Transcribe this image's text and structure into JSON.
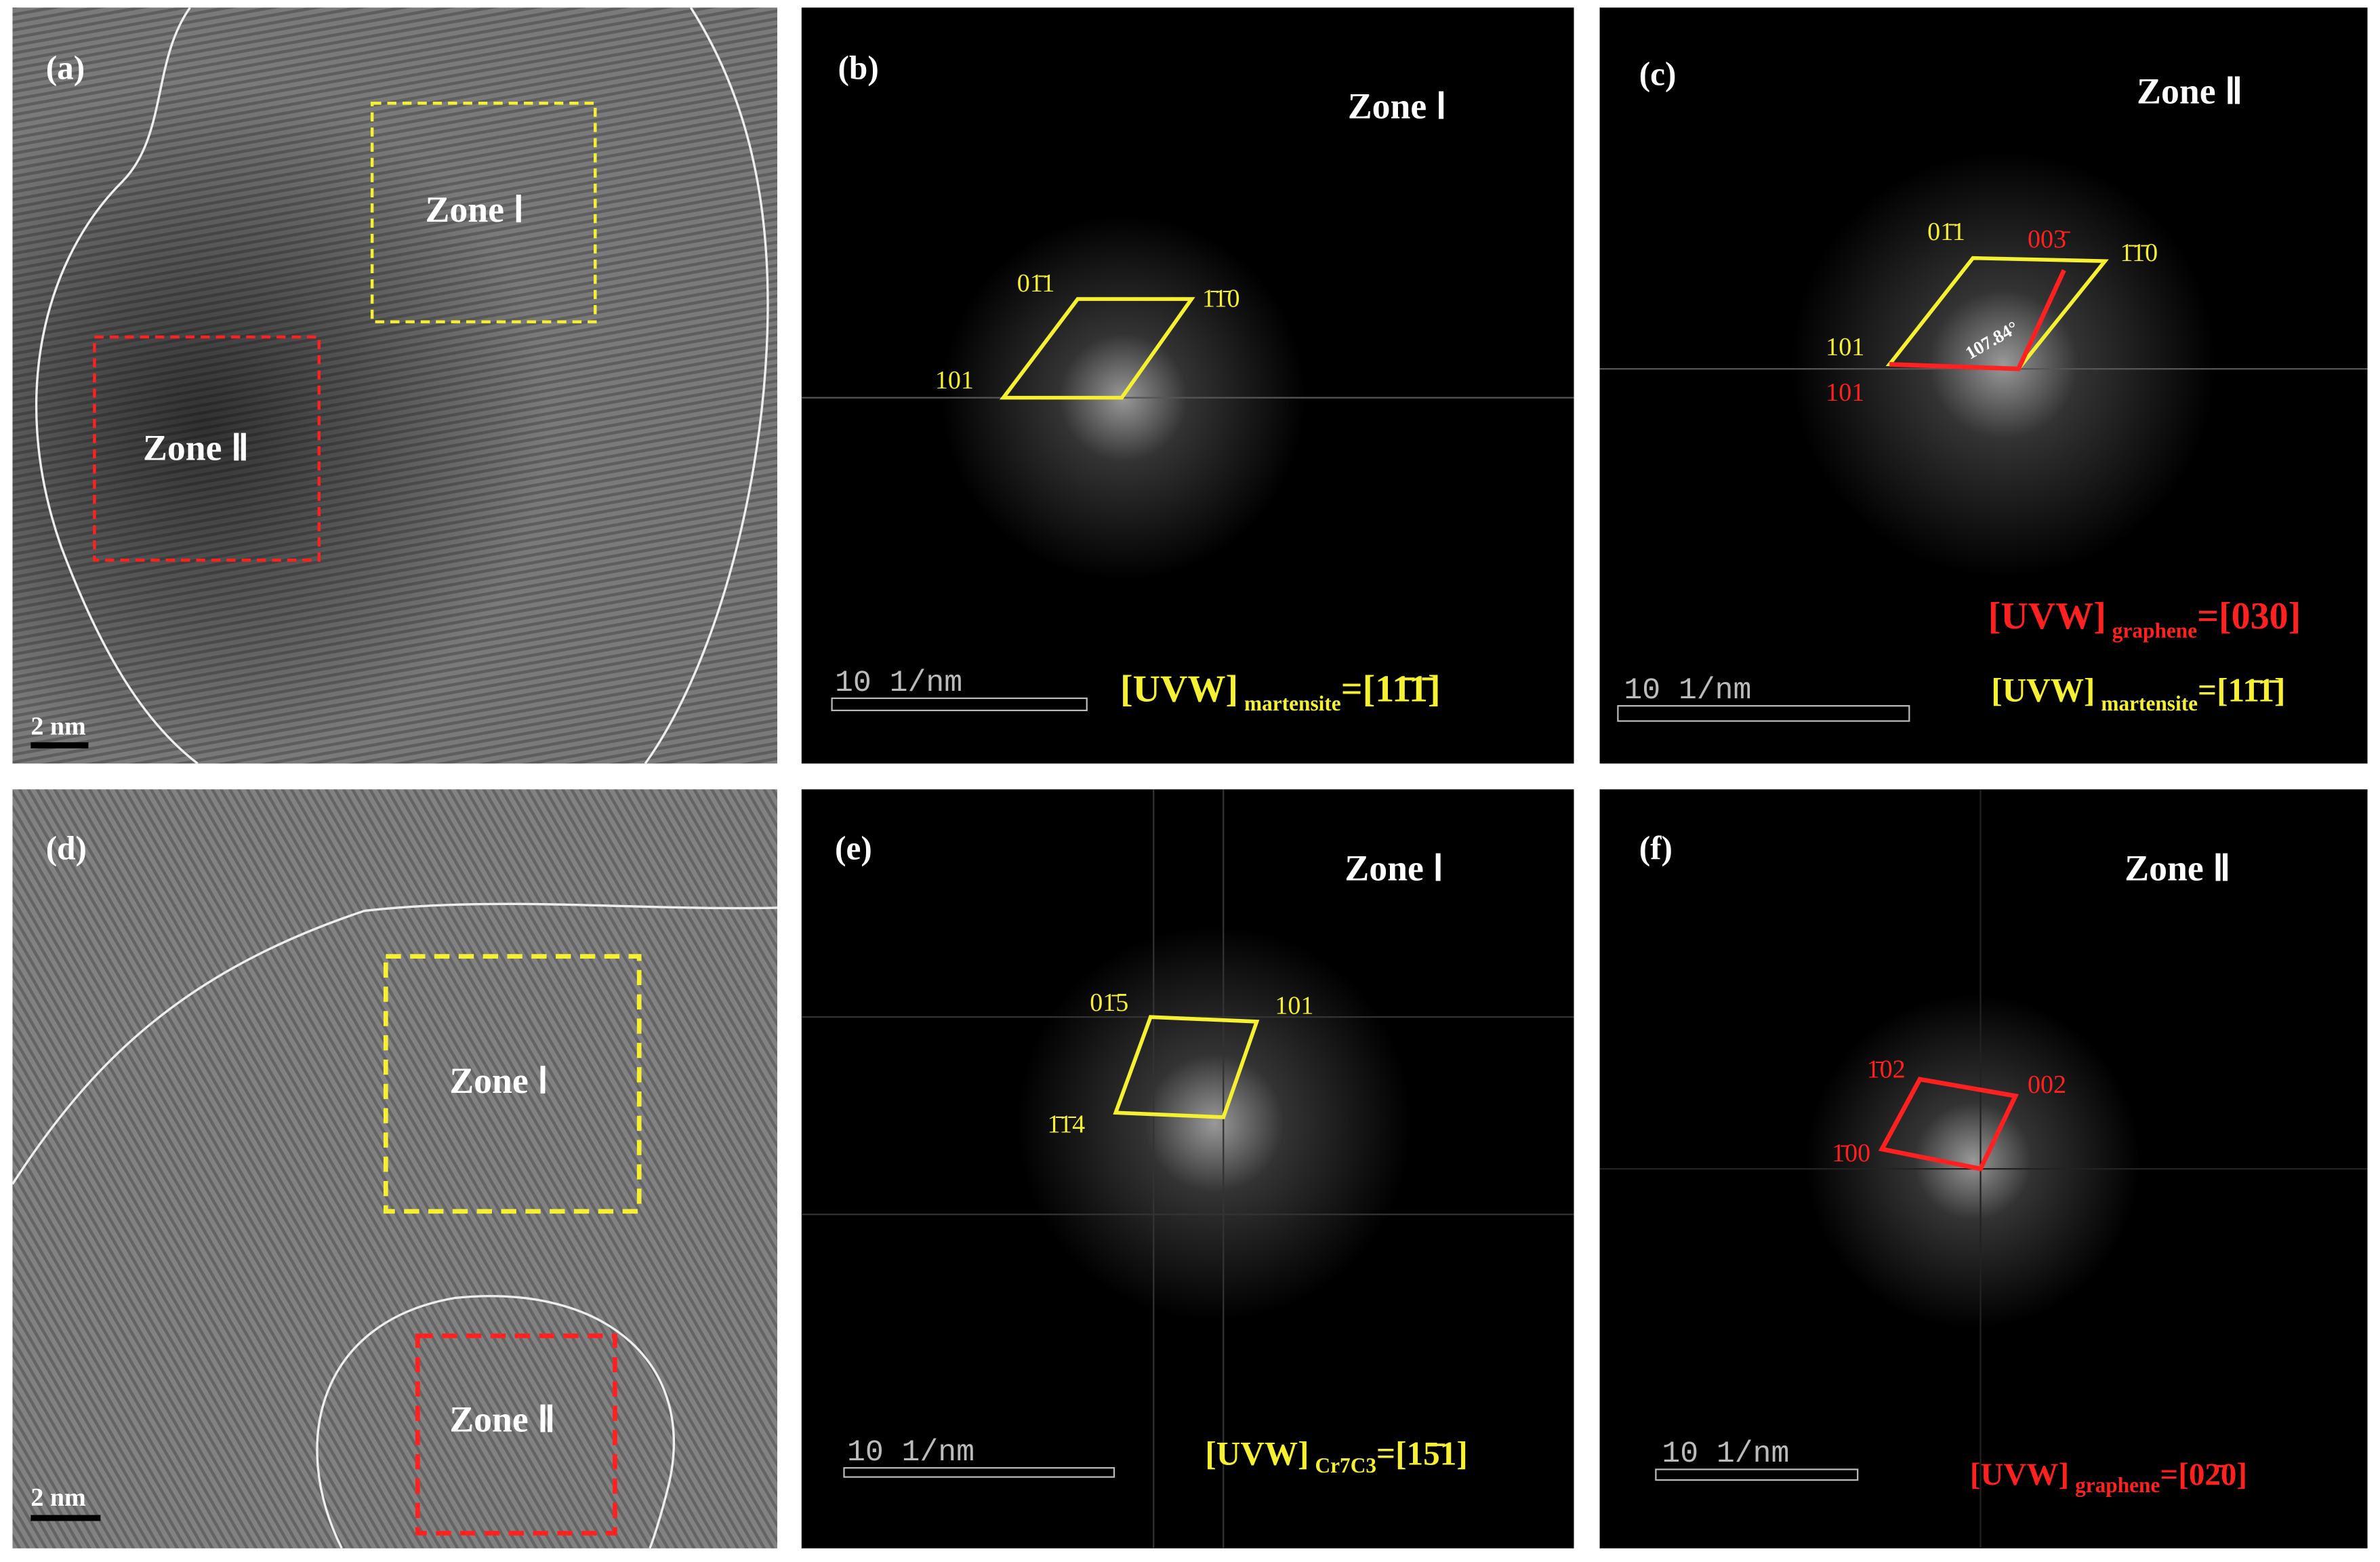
{
  "panels": [
    {
      "label": "(a)",
      "zones": [
        "Zone Ⅰ",
        "Zone Ⅱ"
      ],
      "scale_bar": "2 nm"
    },
    {
      "label": "(b)",
      "zone": "Zone Ⅰ",
      "indices": [
        "01̄1",
        "1̄1̄0",
        "101"
      ],
      "scale_bar": "10 1/nm",
      "uvw": {
        "prefix": "[UVW]",
        "subscript": "martensite",
        "suffix": "=[11̄1̄]"
      }
    },
    {
      "label": "(c)",
      "zone": "Zone Ⅱ",
      "indices": [
        "01̄1",
        "003̄",
        "1̄1̄0",
        "101",
        "101"
      ],
      "angle": "107.84°",
      "scale_bar": "10 1/nm",
      "uvw": [
        {
          "prefix": "[UVW]",
          "subscript": "graphene",
          "suffix": "=[030]"
        },
        {
          "prefix": "[UVW]",
          "subscript": "martensite",
          "suffix": "=[11̄1̄]"
        }
      ]
    },
    {
      "label": "(d)",
      "zones": [
        "Zone Ⅰ",
        "Zone Ⅱ"
      ],
      "scale_bar": "2 nm"
    },
    {
      "label": "(e)",
      "zone": "Zone Ⅰ",
      "indices": [
        "01̄5",
        "101",
        "1̄1̄4"
      ],
      "scale_bar": "10 1/nm",
      "uvw": {
        "prefix": "[UVW]",
        "subscript": "Cr7C3",
        "suffix": "=[15̄1]"
      }
    },
    {
      "label": "(f)",
      "zone": "Zone Ⅱ",
      "indices": [
        "1̄02",
        "002",
        "1̄00"
      ],
      "scale_bar": "10 1/nm",
      "uvw": {
        "prefix": "[UVW]",
        "subscript": "graphene",
        "suffix": "=[02̄0]"
      }
    }
  ]
}
